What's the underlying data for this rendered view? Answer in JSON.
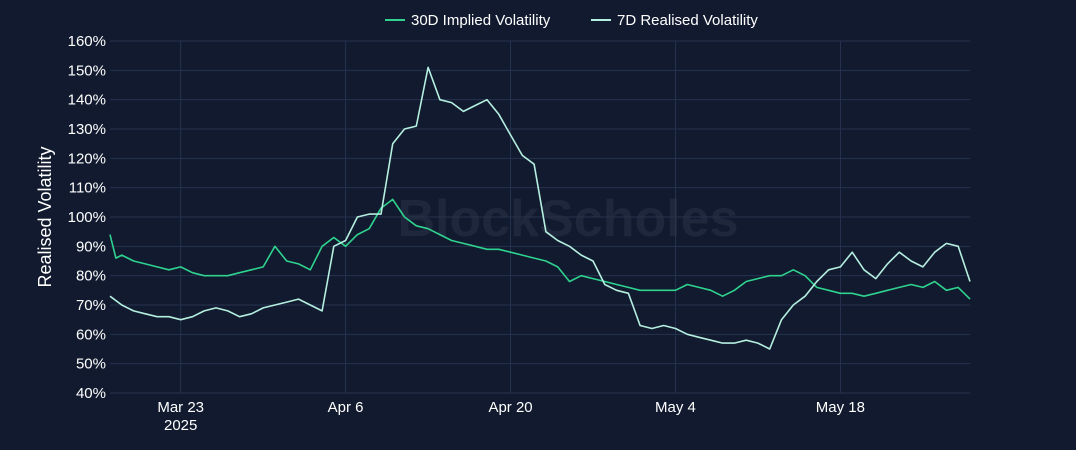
{
  "watermark": "BlockScholes",
  "chart_data": {
    "type": "line",
    "ylabel": "Realised Volatility",
    "xlabel": "",
    "title": "",
    "ylim": [
      40,
      160
    ],
    "y_ticks": [
      40,
      50,
      60,
      70,
      80,
      90,
      100,
      110,
      120,
      130,
      140,
      150,
      160
    ],
    "y_tick_suffix": "%",
    "x_range": [
      "2025-03-17",
      "2025-05-29"
    ],
    "x_ticks": [
      {
        "date": "2025-03-23",
        "label": "Mar 23",
        "sublabel": "2025"
      },
      {
        "date": "2025-04-06",
        "label": "Apr 6",
        "sublabel": ""
      },
      {
        "date": "2025-04-20",
        "label": "Apr 20",
        "sublabel": ""
      },
      {
        "date": "2025-05-04",
        "label": "May 4",
        "sublabel": ""
      },
      {
        "date": "2025-05-18",
        "label": "May 18",
        "sublabel": ""
      }
    ],
    "grid": true,
    "legend_position": "top-center",
    "series": [
      {
        "name": "30D Implied Volatility",
        "color": "#2fd38f",
        "points": [
          [
            "2025-03-17",
            94
          ],
          [
            "2025-03-17T12:00",
            86
          ],
          [
            "2025-03-18",
            87
          ],
          [
            "2025-03-19",
            85
          ],
          [
            "2025-03-20",
            84
          ],
          [
            "2025-03-21",
            83
          ],
          [
            "2025-03-22",
            82
          ],
          [
            "2025-03-23",
            83
          ],
          [
            "2025-03-24",
            81
          ],
          [
            "2025-03-25",
            80
          ],
          [
            "2025-03-26",
            80
          ],
          [
            "2025-03-27",
            80
          ],
          [
            "2025-03-28",
            81
          ],
          [
            "2025-03-29",
            82
          ],
          [
            "2025-03-30",
            83
          ],
          [
            "2025-03-31",
            90
          ],
          [
            "2025-04-01",
            85
          ],
          [
            "2025-04-02",
            84
          ],
          [
            "2025-04-03",
            82
          ],
          [
            "2025-04-04",
            90
          ],
          [
            "2025-04-05",
            93
          ],
          [
            "2025-04-06",
            90
          ],
          [
            "2025-04-07",
            94
          ],
          [
            "2025-04-08",
            96
          ],
          [
            "2025-04-09",
            103
          ],
          [
            "2025-04-10",
            106
          ],
          [
            "2025-04-11",
            100
          ],
          [
            "2025-04-12",
            97
          ],
          [
            "2025-04-13",
            96
          ],
          [
            "2025-04-14",
            94
          ],
          [
            "2025-04-15",
            92
          ],
          [
            "2025-04-16",
            91
          ],
          [
            "2025-04-17",
            90
          ],
          [
            "2025-04-18",
            89
          ],
          [
            "2025-04-19",
            89
          ],
          [
            "2025-04-20",
            88
          ],
          [
            "2025-04-21",
            87
          ],
          [
            "2025-04-22",
            86
          ],
          [
            "2025-04-23",
            85
          ],
          [
            "2025-04-24",
            83
          ],
          [
            "2025-04-25",
            78
          ],
          [
            "2025-04-26",
            80
          ],
          [
            "2025-04-27",
            79
          ],
          [
            "2025-04-28",
            78
          ],
          [
            "2025-04-29",
            77
          ],
          [
            "2025-04-30",
            76
          ],
          [
            "2025-05-01",
            75
          ],
          [
            "2025-05-02",
            75
          ],
          [
            "2025-05-03",
            75
          ],
          [
            "2025-05-04",
            75
          ],
          [
            "2025-05-05",
            77
          ],
          [
            "2025-05-06",
            76
          ],
          [
            "2025-05-07",
            75
          ],
          [
            "2025-05-08",
            73
          ],
          [
            "2025-05-09",
            75
          ],
          [
            "2025-05-10",
            78
          ],
          [
            "2025-05-11",
            79
          ],
          [
            "2025-05-12",
            80
          ],
          [
            "2025-05-13",
            80
          ],
          [
            "2025-05-14",
            82
          ],
          [
            "2025-05-15",
            80
          ],
          [
            "2025-05-16",
            76
          ],
          [
            "2025-05-17",
            75
          ],
          [
            "2025-05-18",
            74
          ],
          [
            "2025-05-19",
            74
          ],
          [
            "2025-05-20",
            73
          ],
          [
            "2025-05-21",
            74
          ],
          [
            "2025-05-22",
            75
          ],
          [
            "2025-05-23",
            76
          ],
          [
            "2025-05-24",
            77
          ],
          [
            "2025-05-25",
            76
          ],
          [
            "2025-05-26",
            78
          ],
          [
            "2025-05-27",
            75
          ],
          [
            "2025-05-28",
            76
          ],
          [
            "2025-05-29",
            72
          ]
        ]
      },
      {
        "name": "7D Realised Volatility",
        "color": "#b5efe0",
        "points": [
          [
            "2025-03-17",
            73
          ],
          [
            "2025-03-18",
            70
          ],
          [
            "2025-03-19",
            68
          ],
          [
            "2025-03-20",
            67
          ],
          [
            "2025-03-21",
            66
          ],
          [
            "2025-03-22",
            66
          ],
          [
            "2025-03-23",
            65
          ],
          [
            "2025-03-24",
            66
          ],
          [
            "2025-03-25",
            68
          ],
          [
            "2025-03-26",
            69
          ],
          [
            "2025-03-27",
            68
          ],
          [
            "2025-03-28",
            66
          ],
          [
            "2025-03-29",
            67
          ],
          [
            "2025-03-30",
            69
          ],
          [
            "2025-03-31",
            70
          ],
          [
            "2025-04-01",
            71
          ],
          [
            "2025-04-02",
            72
          ],
          [
            "2025-04-03",
            70
          ],
          [
            "2025-04-04",
            68
          ],
          [
            "2025-04-05",
            90
          ],
          [
            "2025-04-06",
            92
          ],
          [
            "2025-04-07",
            100
          ],
          [
            "2025-04-08",
            101
          ],
          [
            "2025-04-09",
            101
          ],
          [
            "2025-04-10",
            125
          ],
          [
            "2025-04-11",
            130
          ],
          [
            "2025-04-12",
            131
          ],
          [
            "2025-04-13",
            151
          ],
          [
            "2025-04-14",
            140
          ],
          [
            "2025-04-15",
            139
          ],
          [
            "2025-04-16",
            136
          ],
          [
            "2025-04-17",
            138
          ],
          [
            "2025-04-18",
            140
          ],
          [
            "2025-04-19",
            135
          ],
          [
            "2025-04-20",
            128
          ],
          [
            "2025-04-21",
            121
          ],
          [
            "2025-04-22",
            118
          ],
          [
            "2025-04-23",
            95
          ],
          [
            "2025-04-24",
            92
          ],
          [
            "2025-04-25",
            90
          ],
          [
            "2025-04-26",
            87
          ],
          [
            "2025-04-27",
            85
          ],
          [
            "2025-04-28",
            77
          ],
          [
            "2025-04-29",
            75
          ],
          [
            "2025-04-30",
            74
          ],
          [
            "2025-05-01",
            63
          ],
          [
            "2025-05-02",
            62
          ],
          [
            "2025-05-03",
            63
          ],
          [
            "2025-05-04",
            62
          ],
          [
            "2025-05-05",
            60
          ],
          [
            "2025-05-06",
            59
          ],
          [
            "2025-05-07",
            58
          ],
          [
            "2025-05-08",
            57
          ],
          [
            "2025-05-09",
            57
          ],
          [
            "2025-05-10",
            58
          ],
          [
            "2025-05-11",
            57
          ],
          [
            "2025-05-12",
            55
          ],
          [
            "2025-05-13",
            65
          ],
          [
            "2025-05-14",
            70
          ],
          [
            "2025-05-15",
            73
          ],
          [
            "2025-05-16",
            78
          ],
          [
            "2025-05-17",
            82
          ],
          [
            "2025-05-18",
            83
          ],
          [
            "2025-05-19",
            88
          ],
          [
            "2025-05-20",
            82
          ],
          [
            "2025-05-21",
            79
          ],
          [
            "2025-05-22",
            84
          ],
          [
            "2025-05-23",
            88
          ],
          [
            "2025-05-24",
            85
          ],
          [
            "2025-05-25",
            83
          ],
          [
            "2025-05-26",
            88
          ],
          [
            "2025-05-27",
            91
          ],
          [
            "2025-05-28",
            90
          ],
          [
            "2025-05-29",
            78
          ]
        ]
      }
    ]
  }
}
